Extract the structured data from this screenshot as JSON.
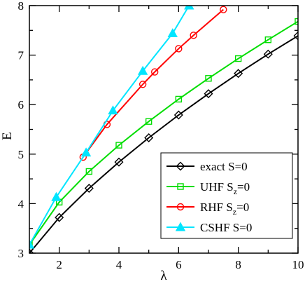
{
  "chart_data": {
    "type": "line",
    "xlabel": "λ",
    "ylabel": "E",
    "xlim": [
      1,
      10
    ],
    "ylim": [
      3,
      8
    ],
    "xticks": [
      2,
      4,
      6,
      8,
      10
    ],
    "yticks": [
      3,
      4,
      5,
      6,
      7,
      8
    ],
    "grid": false,
    "legend_position": "bottom-right",
    "series": [
      {
        "name": "exact S=0",
        "label_main": "exact S=0",
        "label_sub": "",
        "label_tail": "",
        "color": "#000000",
        "marker": "diamond",
        "x": [
          1,
          2,
          3,
          4,
          5,
          6,
          7,
          8,
          9,
          10
        ],
        "y": [
          3.0,
          3.72,
          4.31,
          4.84,
          5.33,
          5.79,
          6.22,
          6.63,
          7.02,
          7.39
        ]
      },
      {
        "name": "UHF Sz=0",
        "label_main": "UHF S",
        "label_sub": "z",
        "label_tail": "=0",
        "color": "#00dd00",
        "marker": "square",
        "x": [
          1,
          2,
          3,
          4,
          5,
          6,
          7,
          8,
          9,
          10
        ],
        "y": [
          3.17,
          4.03,
          4.65,
          5.18,
          5.66,
          6.11,
          6.53,
          6.93,
          7.31,
          7.68
        ]
      },
      {
        "name": "RHF Sz=0",
        "label_main": "RHF S",
        "label_sub": "z",
        "label_tail": "=0",
        "color": "#ff0000",
        "marker": "circle",
        "x": [
          2.8,
          3.6,
          4.8,
          5.2,
          6.0,
          6.5,
          7.5
        ],
        "y": [
          4.94,
          5.6,
          6.41,
          6.66,
          7.13,
          7.4,
          7.92
        ]
      },
      {
        "name": "CSHF S=0",
        "label_main": "CSHF S=0",
        "label_sub": "",
        "label_tail": "",
        "color": "#00e5ff",
        "marker": "triangle",
        "x": [
          1,
          1.9,
          2.9,
          3.8,
          4.8,
          5.8,
          6.35
        ],
        "y": [
          3.17,
          4.13,
          5.03,
          5.88,
          6.68,
          7.44,
          8.0
        ]
      }
    ]
  }
}
